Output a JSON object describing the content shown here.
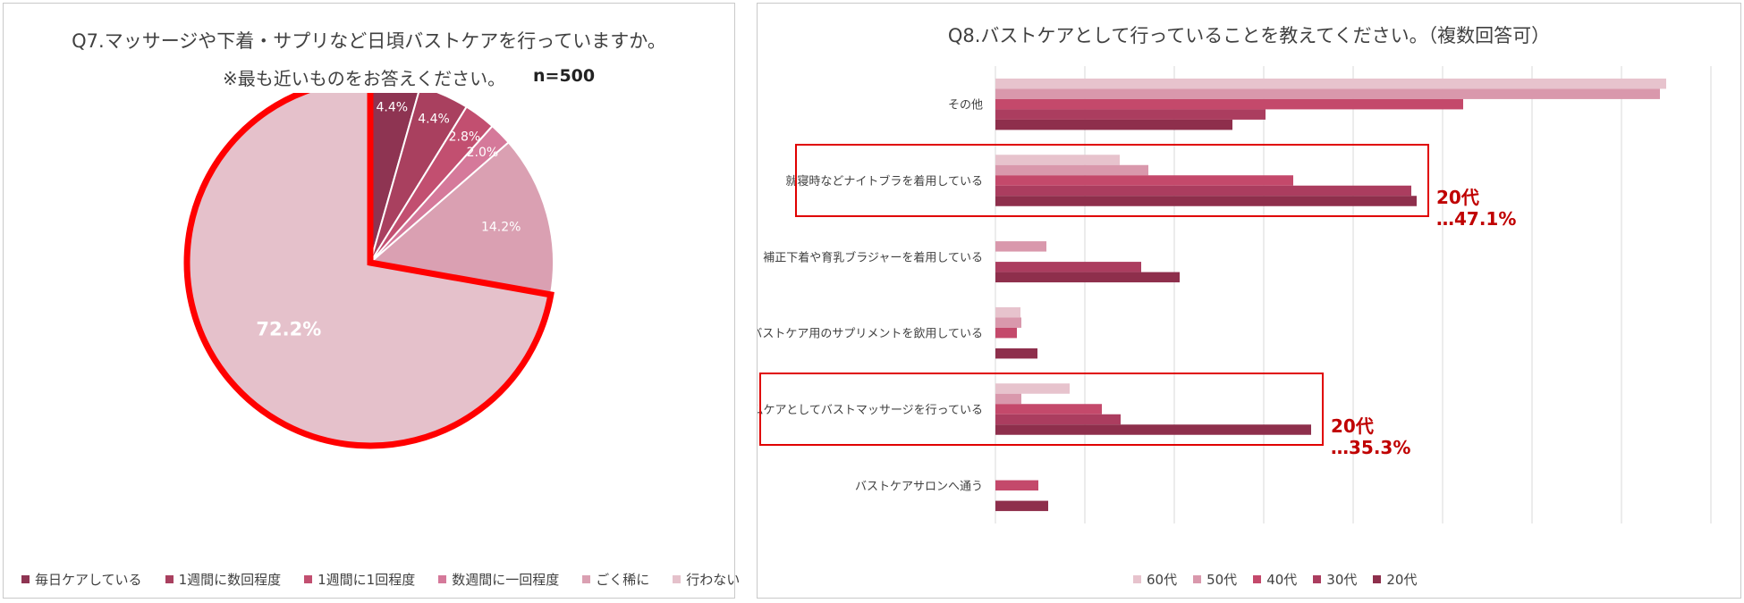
{
  "chart_data": [
    {
      "type": "pie",
      "title": "Q7.マッサージや下着・サプリなど日頃バストケアを行っていますか。",
      "subtitle": "※最も近いものをお答えください。",
      "n_label": "n=500",
      "categories": [
        "毎日ケアしている",
        "1週間に数回程度",
        "1週間に1回程度",
        "数週間に一回程度",
        "ごく稀に",
        "行わない"
      ],
      "values": [
        4.4,
        4.4,
        2.8,
        2.0,
        14.2,
        72.2
      ],
      "labels": [
        "4.4%",
        "4.4%",
        "2.8%",
        "2.0%",
        "14.2%",
        "72.2%"
      ],
      "colors": [
        "#8e3452",
        "#a9405f",
        "#c24f70",
        "#d5799a",
        "#daa0b2",
        "#e5c1cb"
      ],
      "highlighted_slice": "行わない",
      "highlight_color": "#ff0000",
      "legend_position": "bottom"
    },
    {
      "type": "bar",
      "orientation": "horizontal",
      "title": "Q8.バストケアとして行っていることを教えてください。（複数回答可）",
      "categories": [
        "その他",
        "就寝時などナイトブラを着用している",
        "補正下着や育乳ブラジャーを着用している",
        "バストケア用のサプリメントを飲用している",
        "ホームケアとしてバストマッサージを行っている",
        "バストケアサロンへ通う"
      ],
      "series": [
        {
          "name": "60代",
          "color": "#e7c3cd",
          "values": [
            75.0,
            13.9,
            0,
            2.8,
            8.3,
            0
          ]
        },
        {
          "name": "50代",
          "color": "#d998ac",
          "values": [
            74.3,
            17.1,
            5.7,
            2.9,
            2.9,
            0
          ]
        },
        {
          "name": "40代",
          "color": "#c4496b",
          "values": [
            52.3,
            33.3,
            0,
            2.4,
            11.9,
            4.8
          ]
        },
        {
          "name": "30代",
          "color": "#ab3d5f",
          "values": [
            30.2,
            46.5,
            16.3,
            0,
            14.0,
            0
          ]
        },
        {
          "name": "20代",
          "color": "#8e2f4c",
          "values": [
            26.5,
            47.1,
            20.6,
            4.7,
            35.3,
            5.9
          ]
        }
      ],
      "xlim": [
        0,
        80
      ],
      "xticks": [
        "0.0",
        "10.0",
        "20.0",
        "30.0",
        "40.0",
        "50.0",
        "60.0",
        "70.0",
        "80.0"
      ],
      "grid": true,
      "legend_position": "bottom",
      "annotations": [
        {
          "category_index": 1,
          "line1": "20代",
          "line2": "…47.1%"
        },
        {
          "category_index": 4,
          "line1": "20代",
          "line2": "…35.3%"
        }
      ]
    }
  ]
}
